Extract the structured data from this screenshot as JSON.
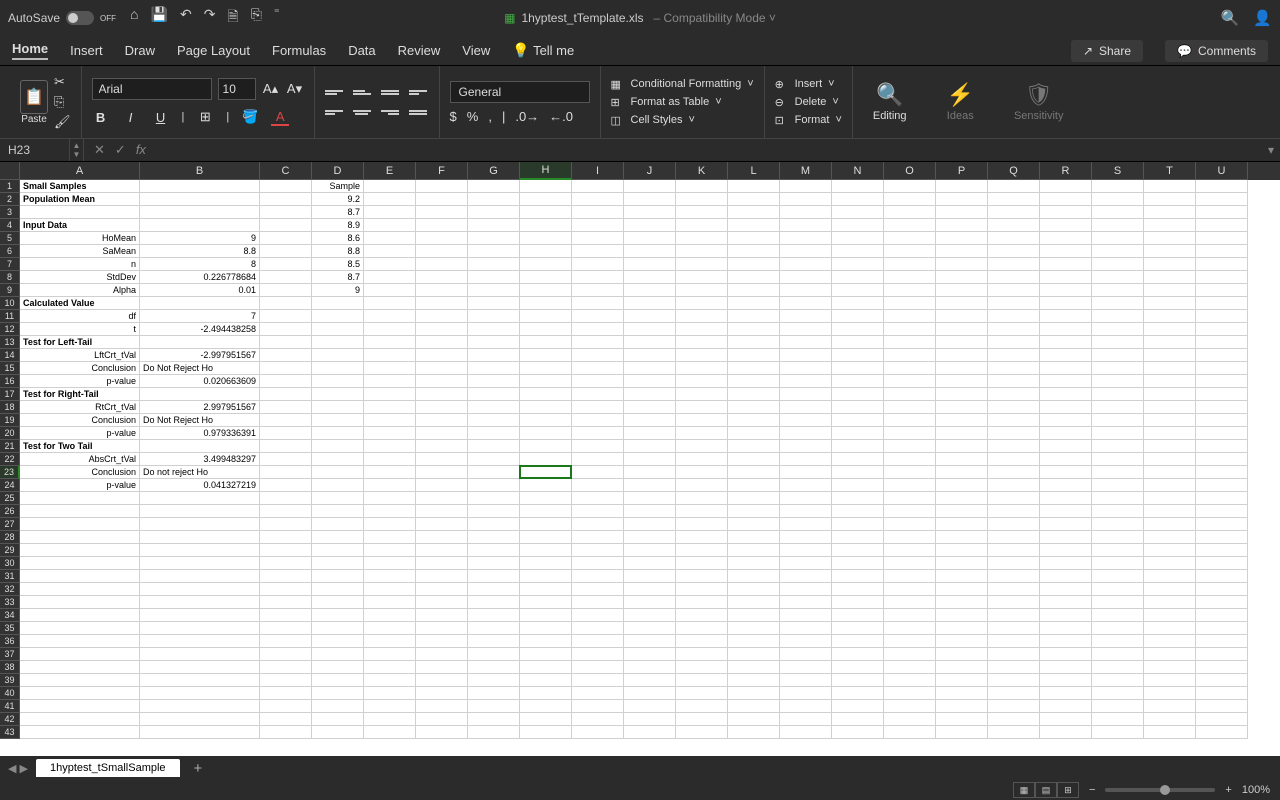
{
  "titlebar": {
    "autosave": "AutoSave",
    "autosave_state": "OFF",
    "filename": "1hyptest_tTemplate.xls",
    "mode": "Compatibility Mode"
  },
  "tabs": {
    "items": [
      "Home",
      "Insert",
      "Draw",
      "Page Layout",
      "Formulas",
      "Data",
      "Review",
      "View"
    ],
    "tellme": "Tell me",
    "share": "Share",
    "comments": "Comments",
    "active": "Home"
  },
  "ribbon": {
    "paste": "Paste",
    "font_name": "Arial",
    "font_size": "10",
    "number_format": "General",
    "cond_fmt": "Conditional Formatting",
    "fmt_table": "Format as Table",
    "cell_styles": "Cell Styles",
    "insert": "Insert",
    "delete": "Delete",
    "format": "Format",
    "editing": "Editing",
    "ideas": "Ideas",
    "sensitivity": "Sensitivity"
  },
  "fbar": {
    "cellref": "H23"
  },
  "grid": {
    "columns": [
      {
        "label": "A",
        "w": 120
      },
      {
        "label": "B",
        "w": 120
      },
      {
        "label": "C",
        "w": 52
      },
      {
        "label": "D",
        "w": 52
      },
      {
        "label": "E",
        "w": 52
      },
      {
        "label": "F",
        "w": 52
      },
      {
        "label": "G",
        "w": 52
      },
      {
        "label": "H",
        "w": 52
      },
      {
        "label": "I",
        "w": 52
      },
      {
        "label": "J",
        "w": 52
      },
      {
        "label": "K",
        "w": 52
      },
      {
        "label": "L",
        "w": 52
      },
      {
        "label": "M",
        "w": 52
      },
      {
        "label": "N",
        "w": 52
      },
      {
        "label": "O",
        "w": 52
      },
      {
        "label": "P",
        "w": 52
      },
      {
        "label": "Q",
        "w": 52
      },
      {
        "label": "R",
        "w": 52
      },
      {
        "label": "S",
        "w": 52
      },
      {
        "label": "T",
        "w": 52
      },
      {
        "label": "U",
        "w": 52
      }
    ],
    "selected_col": "H",
    "selected_row": 23,
    "row_count": 43,
    "cells": {
      "1": {
        "A": {
          "v": "Small Samples",
          "b": true
        },
        "D": {
          "v": "Sample",
          "a": "r"
        }
      },
      "2": {
        "A": {
          "v": "Population Mean",
          "b": true
        },
        "D": {
          "v": "9.2",
          "a": "r"
        }
      },
      "3": {
        "D": {
          "v": "8.7",
          "a": "r"
        }
      },
      "4": {
        "A": {
          "v": "Input Data",
          "b": true
        },
        "D": {
          "v": "8.9",
          "a": "r"
        }
      },
      "5": {
        "A": {
          "v": "HoMean",
          "a": "r"
        },
        "B": {
          "v": "9",
          "a": "r"
        },
        "D": {
          "v": "8.6",
          "a": "r"
        }
      },
      "6": {
        "A": {
          "v": "SaMean",
          "a": "r"
        },
        "B": {
          "v": "8.8",
          "a": "r"
        },
        "D": {
          "v": "8.8",
          "a": "r"
        }
      },
      "7": {
        "A": {
          "v": "n",
          "a": "r"
        },
        "B": {
          "v": "8",
          "a": "r"
        },
        "D": {
          "v": "8.5",
          "a": "r"
        }
      },
      "8": {
        "A": {
          "v": "StdDev",
          "a": "r"
        },
        "B": {
          "v": "0.226778684",
          "a": "r"
        },
        "D": {
          "v": "8.7",
          "a": "r"
        }
      },
      "9": {
        "A": {
          "v": "Alpha",
          "a": "r"
        },
        "B": {
          "v": "0.01",
          "a": "r"
        },
        "D": {
          "v": "9",
          "a": "r"
        }
      },
      "10": {
        "A": {
          "v": "Calculated Value",
          "b": true
        }
      },
      "11": {
        "A": {
          "v": "df",
          "a": "r"
        },
        "B": {
          "v": "7",
          "a": "r"
        }
      },
      "12": {
        "A": {
          "v": "t",
          "a": "r"
        },
        "B": {
          "v": "-2.494438258",
          "a": "r"
        }
      },
      "13": {
        "A": {
          "v": "Test for Left-Tail",
          "b": true
        }
      },
      "14": {
        "A": {
          "v": "LftCrt_tVal",
          "a": "r"
        },
        "B": {
          "v": "-2.997951567",
          "a": "r"
        }
      },
      "15": {
        "A": {
          "v": "Conclusion",
          "a": "r"
        },
        "B": {
          "v": "Do Not Reject Ho"
        }
      },
      "16": {
        "A": {
          "v": "p-value",
          "a": "r"
        },
        "B": {
          "v": "0.020663609",
          "a": "r"
        }
      },
      "17": {
        "A": {
          "v": "Test for Right-Tail",
          "b": true
        }
      },
      "18": {
        "A": {
          "v": "RtCrt_tVal",
          "a": "r"
        },
        "B": {
          "v": "2.997951567",
          "a": "r"
        }
      },
      "19": {
        "A": {
          "v": "Conclusion",
          "a": "r"
        },
        "B": {
          "v": "Do Not Reject Ho"
        }
      },
      "20": {
        "A": {
          "v": "p-value",
          "a": "r"
        },
        "B": {
          "v": "0.979336391",
          "a": "r"
        }
      },
      "21": {
        "A": {
          "v": "Test for Two Tail",
          "b": true
        }
      },
      "22": {
        "A": {
          "v": "AbsCrt_tVal",
          "a": "r"
        },
        "B": {
          "v": "3.499483297",
          "a": "r"
        }
      },
      "23": {
        "A": {
          "v": "Conclusion",
          "a": "r"
        },
        "B": {
          "v": "Do not reject Ho"
        }
      },
      "24": {
        "A": {
          "v": "p-value",
          "a": "r"
        },
        "B": {
          "v": "0.041327219",
          "a": "r"
        }
      }
    }
  },
  "sheets": {
    "active": "1hyptest_tSmallSample"
  },
  "status": {
    "zoom": "100%"
  }
}
